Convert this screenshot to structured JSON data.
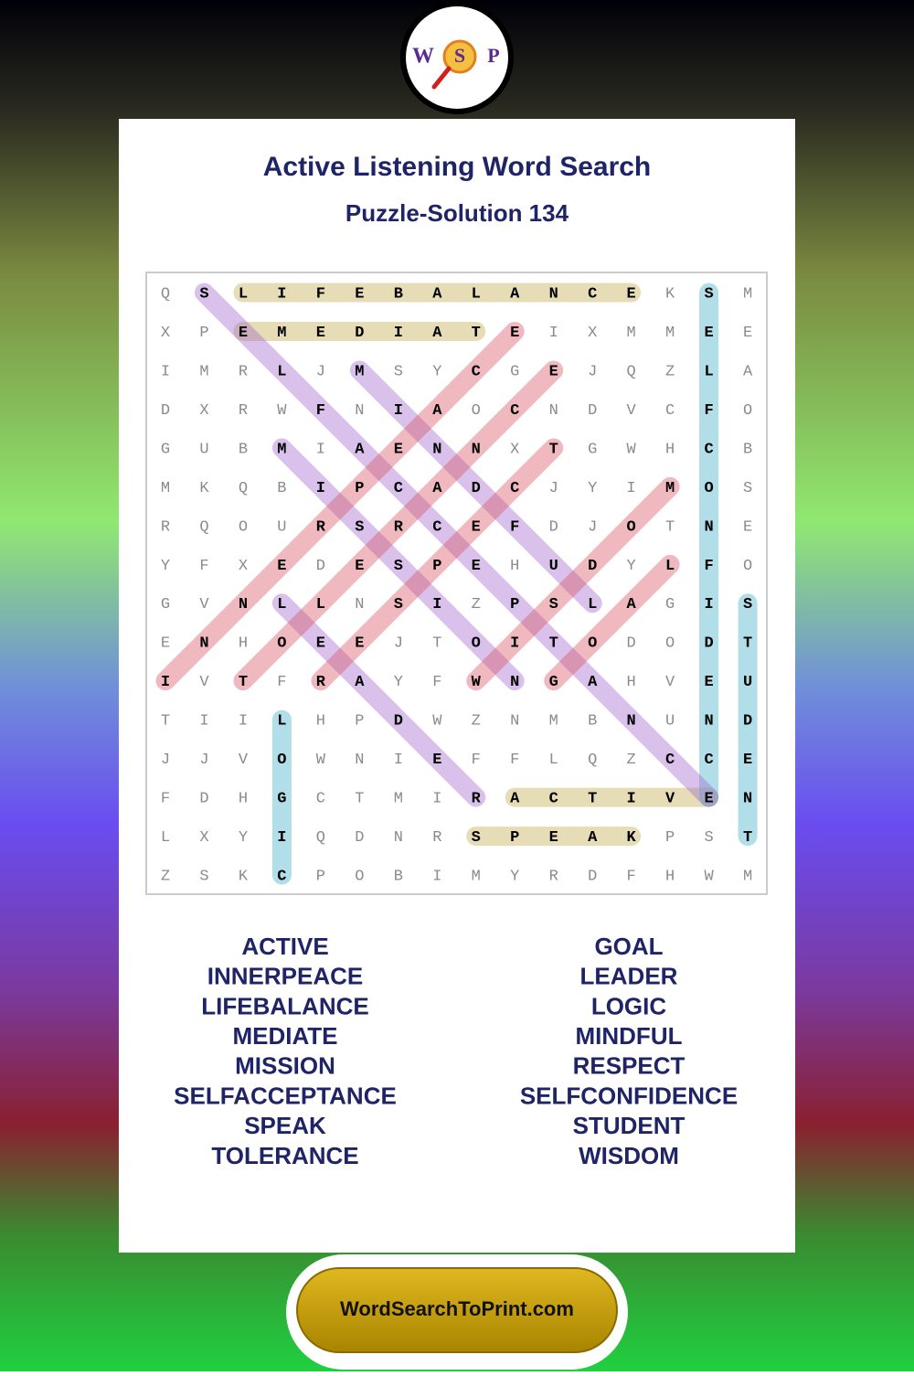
{
  "logo": {
    "letters": [
      "W",
      "S",
      "P"
    ]
  },
  "header": {
    "title": "Active Listening Word Search",
    "subtitle": "Puzzle-Solution 134"
  },
  "grid": {
    "rows": [
      [
        "Q",
        "S",
        "L",
        "I",
        "F",
        "E",
        "B",
        "A",
        "L",
        "A",
        "N",
        "C",
        "E",
        "K",
        "S",
        "M"
      ],
      [
        "X",
        "P",
        "E",
        "M",
        "E",
        "D",
        "I",
        "A",
        "T",
        "E",
        "I",
        "X",
        "M",
        "M",
        "E",
        "E"
      ],
      [
        "I",
        "M",
        "R",
        "L",
        "J",
        "M",
        "S",
        "Y",
        "C",
        "G",
        "E",
        "J",
        "Q",
        "Z",
        "L",
        "A"
      ],
      [
        "D",
        "X",
        "R",
        "W",
        "F",
        "N",
        "I",
        "A",
        "O",
        "C",
        "N",
        "D",
        "V",
        "C",
        "F",
        "O"
      ],
      [
        "G",
        "U",
        "B",
        "M",
        "I",
        "A",
        "E",
        "N",
        "N",
        "X",
        "T",
        "G",
        "W",
        "H",
        "C",
        "B"
      ],
      [
        "M",
        "K",
        "Q",
        "B",
        "I",
        "P",
        "C",
        "A",
        "D",
        "C",
        "J",
        "Y",
        "I",
        "M",
        "O",
        "S"
      ],
      [
        "R",
        "Q",
        "O",
        "U",
        "R",
        "S",
        "R",
        "C",
        "E",
        "F",
        "D",
        "J",
        "O",
        "T",
        "N",
        "E"
      ],
      [
        "Y",
        "F",
        "X",
        "E",
        "D",
        "E",
        "S",
        "P",
        "E",
        "H",
        "U",
        "D",
        "Y",
        "L",
        "F",
        "O"
      ],
      [
        "G",
        "V",
        "N",
        "L",
        "L",
        "N",
        "S",
        "I",
        "Z",
        "P",
        "S",
        "L",
        "A",
        "G",
        "I",
        "S"
      ],
      [
        "E",
        "N",
        "H",
        "O",
        "E",
        "E",
        "J",
        "T",
        "O",
        "I",
        "T",
        "O",
        "D",
        "O",
        "D",
        "T"
      ],
      [
        "I",
        "V",
        "T",
        "F",
        "R",
        "A",
        "Y",
        "F",
        "W",
        "N",
        "G",
        "A",
        "H",
        "V",
        "E",
        "U"
      ],
      [
        "T",
        "I",
        "I",
        "L",
        "H",
        "P",
        "D",
        "W",
        "Z",
        "N",
        "M",
        "B",
        "N",
        "U",
        "N",
        "D"
      ],
      [
        "J",
        "J",
        "V",
        "O",
        "W",
        "N",
        "I",
        "E",
        "F",
        "F",
        "L",
        "Q",
        "Z",
        "C",
        "C",
        "E"
      ],
      [
        "F",
        "D",
        "H",
        "G",
        "C",
        "T",
        "M",
        "I",
        "R",
        "A",
        "C",
        "T",
        "I",
        "V",
        "E",
        "N"
      ],
      [
        "L",
        "X",
        "Y",
        "I",
        "Q",
        "D",
        "N",
        "R",
        "S",
        "P",
        "E",
        "A",
        "K",
        "P",
        "S",
        "T"
      ],
      [
        "Z",
        "S",
        "K",
        "C",
        "P",
        "O",
        "B",
        "I",
        "M",
        "Y",
        "R",
        "D",
        "F",
        "H",
        "W",
        "M"
      ]
    ]
  },
  "words": {
    "left": [
      "ACTIVE",
      "INNERPEACE",
      "LIFEBALANCE",
      "MEDIATE",
      "MISSION",
      "SELFACCEPTANCE",
      "SPEAK",
      "TOLERANCE"
    ],
    "right": [
      "GOAL",
      "LEADER",
      "LOGIC",
      "MINDFUL",
      "RESPECT",
      "SELFCONFIDENCE",
      "STUDENT",
      "WISDOM"
    ]
  },
  "footer": {
    "text": "WordSearchToPrint.com"
  }
}
